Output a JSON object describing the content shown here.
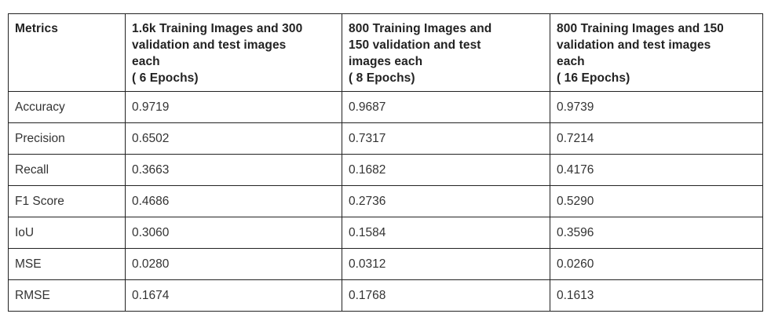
{
  "table": {
    "headers": [
      [
        "Metrics"
      ],
      [
        "1.6k Training Images and 300",
        "validation and test images",
        "each",
        "( 6 Epochs)"
      ],
      [
        "800 Training Images and",
        "150 validation and test",
        "images each",
        "( 8 Epochs)"
      ],
      [
        "800 Training Images and 150",
        "validation and test images",
        "each",
        "( 16 Epochs)"
      ]
    ],
    "rows": [
      {
        "metric": "Accuracy",
        "values": [
          "0.9719",
          "0.9687",
          "0.9739"
        ]
      },
      {
        "metric": "Precision",
        "values": [
          "0.6502",
          "0.7317",
          "0.7214"
        ]
      },
      {
        "metric": "Recall",
        "values": [
          "0.3663",
          "0.1682",
          "0.4176"
        ]
      },
      {
        "metric": "F1 Score",
        "values": [
          "0.4686",
          "0.2736",
          "0.5290"
        ]
      },
      {
        "metric": "IoU",
        "values": [
          "0.3060",
          "0.1584",
          "0.3596"
        ]
      },
      {
        "metric": "MSE",
        "values": [
          "0.0280",
          "0.0312",
          "0.0260"
        ]
      },
      {
        "metric": "RMSE",
        "values": [
          "0.1674",
          "0.1768",
          "0.1613"
        ]
      }
    ]
  }
}
